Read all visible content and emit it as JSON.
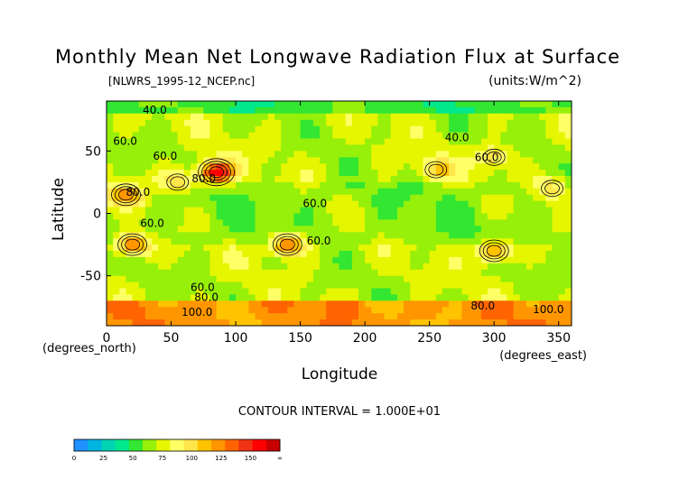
{
  "chart_data": {
    "type": "heatmap",
    "title": "Monthly Mean Net Longwave Radiation Flux at Surface",
    "subtitle": "[NLWRS_1995-12_NCEP.nc]",
    "units": "(units:W/m^2)",
    "xlabel": "Longitude",
    "ylabel": "Latitude",
    "x_units_label": "(degrees_east)",
    "y_units_label": "(degrees_north)",
    "xlim": [
      0,
      360
    ],
    "ylim": [
      -90,
      90
    ],
    "x_ticks": [
      0,
      50,
      100,
      150,
      200,
      250,
      300,
      350
    ],
    "y_ticks": [
      50,
      0,
      -50
    ],
    "contour_interval_text": "CONTOUR INTERVAL = 1.000E+01",
    "contour_labels": [
      {
        "text": "40.0",
        "lon": 28,
        "lat": 80
      },
      {
        "text": "40.0",
        "lon": 262,
        "lat": 58
      },
      {
        "text": "60.0",
        "lon": 5,
        "lat": 55
      },
      {
        "text": "60.0",
        "lon": 36,
        "lat": 43
      },
      {
        "text": "60.0",
        "lon": 152,
        "lat": 5
      },
      {
        "text": "60.0",
        "lon": 26,
        "lat": -11
      },
      {
        "text": "60.0",
        "lon": 155,
        "lat": -25
      },
      {
        "text": "60.0",
        "lon": 285,
        "lat": 42
      },
      {
        "text": "60.0",
        "lon": 65,
        "lat": -62
      },
      {
        "text": "80.0",
        "lon": 66,
        "lat": 25
      },
      {
        "text": "80.0",
        "lon": 15,
        "lat": 14
      },
      {
        "text": "80.0",
        "lon": 68,
        "lat": -70
      },
      {
        "text": "80.0",
        "lon": 282,
        "lat": -77
      },
      {
        "text": "100.0",
        "lon": 58,
        "lat": -82
      },
      {
        "text": "100.0",
        "lon": 330,
        "lat": -80
      }
    ],
    "hotspots": [
      {
        "lon": 85,
        "lat": 33,
        "value": 140
      },
      {
        "lon": 15,
        "lat": 15,
        "value": 110
      },
      {
        "lon": 55,
        "lat": 25,
        "value": 95
      },
      {
        "lon": 20,
        "lat": -25,
        "value": 120
      },
      {
        "lon": 140,
        "lat": -25,
        "value": 120
      },
      {
        "lon": 300,
        "lat": -30,
        "value": 110
      },
      {
        "lon": 300,
        "lat": 45,
        "value": 90
      },
      {
        "lon": 345,
        "lat": 20,
        "value": 95
      },
      {
        "lon": 255,
        "lat": 35,
        "value": 90
      }
    ],
    "colorbar": {
      "ticks": [
        "0",
        "25",
        "50",
        "75",
        "100",
        "125",
        "150",
        "∞"
      ],
      "colors": [
        "#1e90ff",
        "#00b4e0",
        "#00d2b4",
        "#00e88c",
        "#32e632",
        "#96f00a",
        "#e6f500",
        "#ffff66",
        "#ffe64b",
        "#ffc300",
        "#ff9600",
        "#ff6400",
        "#f03214",
        "#ff0000",
        "#c80000"
      ]
    }
  }
}
